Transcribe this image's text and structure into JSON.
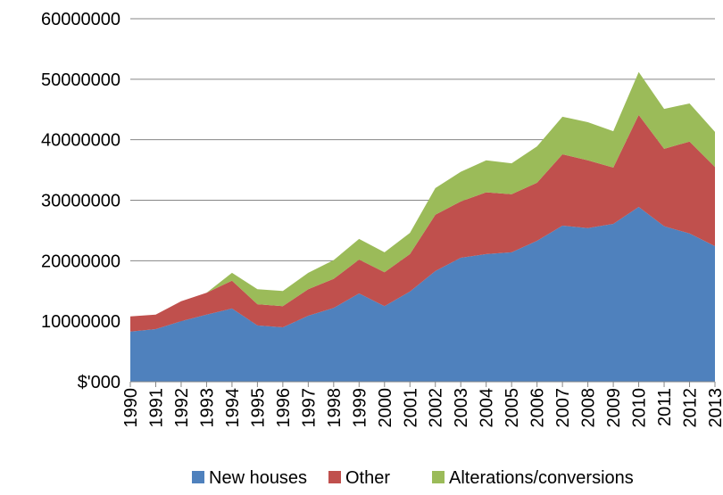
{
  "chart_data": {
    "type": "stacked-area",
    "categories": [
      "1990",
      "1991",
      "1992",
      "1993",
      "1994",
      "1995",
      "1996",
      "1997",
      "1998",
      "1999",
      "2000",
      "2001",
      "2002",
      "2003",
      "2004",
      "2005",
      "2006",
      "2007",
      "2008",
      "2009",
      "2010",
      "2011",
      "2012",
      "2013"
    ],
    "series": [
      {
        "name": "New houses",
        "color": "#4f81bd",
        "values": [
          8300000,
          8700000,
          10000000,
          11100000,
          12100000,
          9300000,
          9000000,
          10900000,
          12200000,
          14600000,
          12500000,
          14900000,
          18300000,
          20500000,
          21100000,
          21400000,
          23300000,
          25800000,
          25400000,
          26100000,
          28900000,
          25700000,
          24500000,
          22400000
        ]
      },
      {
        "name": "Other",
        "color": "#c0504d",
        "values": [
          2500000,
          2400000,
          3300000,
          3600000,
          4600000,
          3500000,
          3500000,
          4400000,
          4800000,
          5600000,
          5600000,
          6200000,
          9300000,
          9300000,
          10200000,
          9600000,
          9600000,
          11800000,
          11200000,
          9300000,
          15200000,
          12800000,
          15200000,
          13100000
        ]
      },
      {
        "name": "Alterations/conversions",
        "color": "#9bbb59",
        "values": [
          0,
          0,
          0,
          0,
          1300000,
          2500000,
          2500000,
          2700000,
          3100000,
          3400000,
          3300000,
          3500000,
          4400000,
          4900000,
          5300000,
          5100000,
          6000000,
          6200000,
          6300000,
          6000000,
          7100000,
          6600000,
          6300000,
          5800000
        ]
      }
    ],
    "ylim": [
      0,
      60000000
    ],
    "yticks": [
      {
        "value": 0,
        "label": "$'000"
      },
      10000000,
      20000000,
      30000000,
      40000000,
      50000000,
      60000000
    ],
    "grid": true,
    "legend": "bottom"
  }
}
